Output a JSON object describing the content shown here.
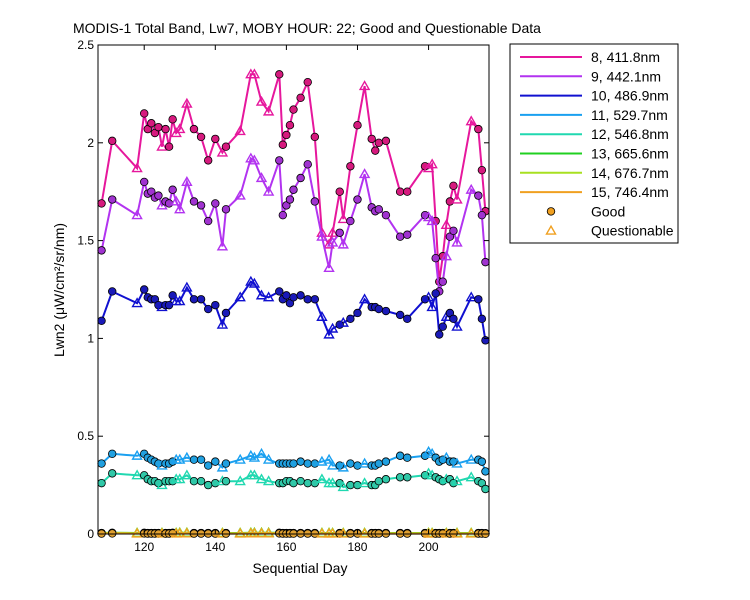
{
  "chart_data": {
    "type": "line",
    "title": "MODIS-1 Total Band, Lw7, MOBY HOUR: 22;  Good and Questionable Data",
    "xlabel": "Sequential Day",
    "ylabel": "Lwn2 (μW/cm²/sr/nm)",
    "xlim": [
      107,
      217
    ],
    "ylim": [
      0,
      2.5
    ],
    "xticks": [
      120,
      140,
      160,
      180,
      200
    ],
    "yticks": [
      0,
      0.5,
      1,
      1.5,
      2,
      2.5
    ],
    "ytick_labels": [
      "0",
      "0.5",
      "1",
      "1.5",
      "2",
      "2.5"
    ],
    "grid": false,
    "legend_position": "outside-right",
    "legend_markers": [
      {
        "label": "Good",
        "marker": "circle",
        "color": "#f0a020"
      },
      {
        "label": "Questionable",
        "marker": "triangle",
        "color": "#f0a020"
      }
    ],
    "x": [
      108,
      111,
      118,
      120,
      121,
      122,
      123,
      124,
      125,
      126,
      127,
      128,
      129,
      130,
      132,
      134,
      136,
      138,
      140,
      142,
      143,
      147,
      150,
      151,
      153,
      155,
      158,
      159,
      160,
      161,
      162,
      164,
      166,
      168,
      170,
      172,
      173,
      175,
      176,
      178,
      180,
      182,
      184,
      185,
      186,
      188,
      192,
      194,
      199,
      200,
      201,
      202,
      203,
      204,
      205,
      206,
      207,
      208,
      212,
      214,
      215,
      216
    ],
    "quality": [
      "G",
      "G",
      "Q",
      "G",
      "G",
      "G",
      "G",
      "G",
      "Q",
      "G",
      "G",
      "G",
      "Q",
      "Q",
      "Q",
      "G",
      "G",
      "G",
      "G",
      "Q",
      "G",
      "Q",
      "Q",
      "Q",
      "Q",
      "Q",
      "G",
      "G",
      "G",
      "G",
      "G",
      "G",
      "G",
      "G",
      "Q",
      "Q",
      "Q",
      "G",
      "Q",
      "G",
      "G",
      "Q",
      "G",
      "G",
      "G",
      "G",
      "G",
      "G",
      "G",
      "Q",
      "Q",
      "G",
      "G",
      "G",
      "Q",
      "G",
      "G",
      "Q",
      "Q",
      "G",
      "G",
      "G"
    ],
    "series": [
      {
        "name": "8, 411.8nm",
        "color": "#e6179c",
        "marker_color": "#d61a7e",
        "values": [
          1.69,
          2.01,
          1.87,
          2.15,
          2.07,
          2.1,
          2.05,
          2.08,
          1.98,
          2.07,
          1.98,
          2.12,
          2.05,
          2.07,
          2.2,
          2.07,
          2.03,
          1.91,
          2.02,
          1.95,
          1.98,
          2.06,
          2.35,
          2.35,
          2.21,
          2.16,
          2.35,
          1.99,
          2.04,
          2.09,
          2.17,
          2.23,
          2.31,
          2.03,
          1.54,
          1.48,
          1.54,
          1.75,
          1.61,
          1.88,
          2.09,
          2.29,
          2.02,
          1.96,
          2.0,
          2.01,
          1.75,
          1.75,
          1.88,
          1.87,
          1.89,
          1.6,
          1.29,
          1.42,
          1.58,
          1.7,
          1.78,
          1.71,
          2.11,
          2.07,
          1.86,
          1.65
        ]
      },
      {
        "name": "9, 442.1nm",
        "color": "#b233f0",
        "marker_color": "#a033d0",
        "values": [
          1.45,
          1.71,
          1.63,
          1.8,
          1.74,
          1.75,
          1.72,
          1.73,
          1.68,
          1.7,
          1.69,
          1.76,
          1.7,
          1.66,
          1.8,
          1.7,
          1.68,
          1.6,
          1.69,
          1.47,
          1.66,
          1.73,
          1.92,
          1.91,
          1.82,
          1.75,
          1.91,
          1.63,
          1.68,
          1.71,
          1.76,
          1.82,
          1.89,
          1.7,
          1.52,
          1.36,
          1.49,
          1.54,
          1.48,
          1.6,
          1.71,
          1.84,
          1.67,
          1.65,
          1.66,
          1.63,
          1.52,
          1.53,
          1.63,
          1.62,
          1.6,
          1.41,
          1.24,
          1.29,
          1.42,
          1.52,
          1.55,
          1.49,
          1.76,
          1.73,
          1.63,
          1.39
        ]
      },
      {
        "name": "10, 486.9nm",
        "color": "#1010d0",
        "marker_color": "#1a1ab8",
        "values": [
          1.09,
          1.24,
          1.18,
          1.25,
          1.21,
          1.2,
          1.2,
          1.17,
          1.16,
          1.17,
          1.17,
          1.22,
          1.19,
          1.19,
          1.26,
          1.2,
          1.2,
          1.15,
          1.17,
          1.07,
          1.13,
          1.21,
          1.29,
          1.28,
          1.22,
          1.21,
          1.24,
          1.2,
          1.22,
          1.18,
          1.21,
          1.22,
          1.2,
          1.2,
          1.11,
          1.02,
          1.05,
          1.07,
          1.08,
          1.1,
          1.13,
          1.2,
          1.16,
          1.16,
          1.15,
          1.14,
          1.12,
          1.1,
          1.2,
          1.21,
          1.16,
          1.23,
          1.02,
          1.06,
          1.11,
          1.13,
          1.1,
          1.06,
          1.21,
          1.2,
          1.1,
          0.99
        ]
      },
      {
        "name": "11, 529.7nm",
        "color": "#1aa0f0",
        "marker_color": "#20a0e0",
        "values": [
          0.36,
          0.41,
          0.4,
          0.41,
          0.39,
          0.38,
          0.37,
          0.36,
          0.35,
          0.36,
          0.36,
          0.37,
          0.38,
          0.38,
          0.39,
          0.38,
          0.38,
          0.35,
          0.37,
          0.34,
          0.36,
          0.38,
          0.4,
          0.39,
          0.41,
          0.38,
          0.36,
          0.36,
          0.36,
          0.36,
          0.36,
          0.37,
          0.36,
          0.36,
          0.37,
          0.38,
          0.35,
          0.35,
          0.34,
          0.36,
          0.35,
          0.36,
          0.35,
          0.35,
          0.36,
          0.37,
          0.4,
          0.39,
          0.4,
          0.42,
          0.41,
          0.39,
          0.37,
          0.38,
          0.39,
          0.37,
          0.37,
          0.36,
          0.38,
          0.38,
          0.37,
          0.32
        ]
      },
      {
        "name": "12, 546.8nm",
        "color": "#20d8b0",
        "marker_color": "#30c8a8",
        "values": [
          0.26,
          0.31,
          0.3,
          0.3,
          0.28,
          0.27,
          0.27,
          0.26,
          0.25,
          0.27,
          0.27,
          0.27,
          0.28,
          0.28,
          0.3,
          0.27,
          0.27,
          0.25,
          0.26,
          0.27,
          0.27,
          0.27,
          0.3,
          0.3,
          0.28,
          0.27,
          0.26,
          0.26,
          0.27,
          0.27,
          0.26,
          0.27,
          0.26,
          0.26,
          0.28,
          0.26,
          0.26,
          0.26,
          0.24,
          0.25,
          0.25,
          0.26,
          0.25,
          0.25,
          0.27,
          0.28,
          0.29,
          0.29,
          0.3,
          0.31,
          0.3,
          0.29,
          0.28,
          0.27,
          0.28,
          0.28,
          0.26,
          0.27,
          0.29,
          0.27,
          0.26,
          0.23
        ]
      },
      {
        "name": "13, 665.6nm",
        "color": "#20d020",
        "marker_color": "#30c030",
        "values": [
          0.005,
          0.006,
          0.005,
          0.006,
          0.005,
          0.005,
          0.005,
          0.005,
          0.005,
          0.005,
          0.005,
          0.006,
          0.005,
          0.006,
          0.006,
          0.005,
          0.005,
          0.005,
          0.005,
          0.005,
          0.005,
          0.005,
          0.006,
          0.006,
          0.006,
          0.006,
          0.006,
          0.005,
          0.005,
          0.005,
          0.005,
          0.005,
          0.005,
          0.005,
          0.005,
          0.005,
          0.005,
          0.005,
          0.005,
          0.005,
          0.005,
          0.005,
          0.005,
          0.005,
          0.005,
          0.005,
          0.005,
          0.005,
          0.005,
          0.005,
          0.005,
          0.005,
          0.005,
          0.005,
          0.005,
          0.005,
          0.005,
          0.005,
          0.005,
          0.005,
          0.005,
          0.004
        ]
      },
      {
        "name": "14, 676.7nm",
        "color": "#a8e020",
        "marker_color": "#a8d020",
        "values": [
          0.004,
          0.005,
          0.004,
          0.005,
          0.004,
          0.004,
          0.004,
          0.004,
          0.004,
          0.004,
          0.004,
          0.005,
          0.004,
          0.005,
          0.005,
          0.004,
          0.004,
          0.004,
          0.004,
          0.004,
          0.004,
          0.004,
          0.005,
          0.005,
          0.005,
          0.005,
          0.005,
          0.004,
          0.004,
          0.004,
          0.004,
          0.004,
          0.004,
          0.004,
          0.004,
          0.004,
          0.004,
          0.004,
          0.004,
          0.004,
          0.004,
          0.004,
          0.004,
          0.004,
          0.004,
          0.004,
          0.004,
          0.004,
          0.004,
          0.004,
          0.004,
          0.004,
          0.004,
          0.004,
          0.004,
          0.004,
          0.004,
          0.004,
          0.004,
          0.004,
          0.004,
          0.003
        ]
      },
      {
        "name": "15, 746.4nm",
        "color": "#f0a020",
        "marker_color": "#e0a030",
        "values": [
          0.002,
          0.003,
          0.002,
          0.003,
          0.002,
          0.002,
          0.002,
          0.002,
          0.002,
          0.002,
          0.002,
          0.003,
          0.002,
          0.003,
          0.003,
          0.002,
          0.002,
          0.002,
          0.002,
          0.002,
          0.002,
          0.002,
          0.003,
          0.003,
          0.003,
          0.003,
          0.003,
          0.002,
          0.002,
          0.002,
          0.002,
          0.002,
          0.002,
          0.002,
          0.002,
          0.002,
          0.002,
          0.002,
          0.002,
          0.002,
          0.002,
          0.002,
          0.002,
          0.002,
          0.002,
          0.002,
          0.002,
          0.002,
          0.002,
          0.002,
          0.002,
          0.002,
          0.002,
          0.002,
          0.002,
          0.002,
          0.002,
          0.002,
          0.002,
          0.002,
          0.002,
          0.001
        ]
      }
    ]
  }
}
